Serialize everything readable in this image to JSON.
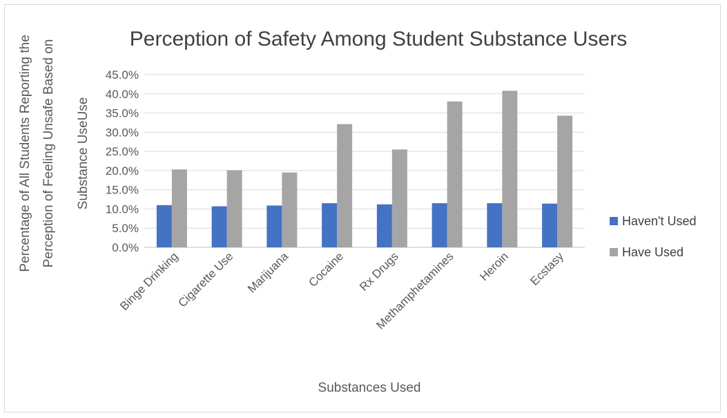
{
  "chart_data": {
    "type": "bar",
    "title": "Perception of Safety Among Student Substance Users",
    "xlabel": "Substances Used",
    "ylabel_lines": [
      "Percentage of All Students Reporting the",
      "Perception of Feeling Unsafe Based on",
      "Substance UseUse"
    ],
    "categories": [
      "Binge Drinking",
      "Cigarette Use",
      "Marijuana",
      "Cocaine",
      "Rx Drugs",
      "Methamphetamines",
      "Heroin",
      "Ecstasy"
    ],
    "series": [
      {
        "name": "Haven't Used",
        "color": "#4472c4",
        "values": [
          11.0,
          10.7,
          10.9,
          11.5,
          11.2,
          11.5,
          11.5,
          11.4
        ]
      },
      {
        "name": "Have Used",
        "color": "#a5a5a5",
        "values": [
          20.3,
          20.1,
          19.5,
          32.1,
          25.5,
          38.0,
          40.8,
          34.3
        ]
      }
    ],
    "ylim": [
      0,
      45
    ],
    "ytick_step": 5,
    "ytick_format": "percent_1dp",
    "grid": true,
    "legend_position": "right"
  }
}
